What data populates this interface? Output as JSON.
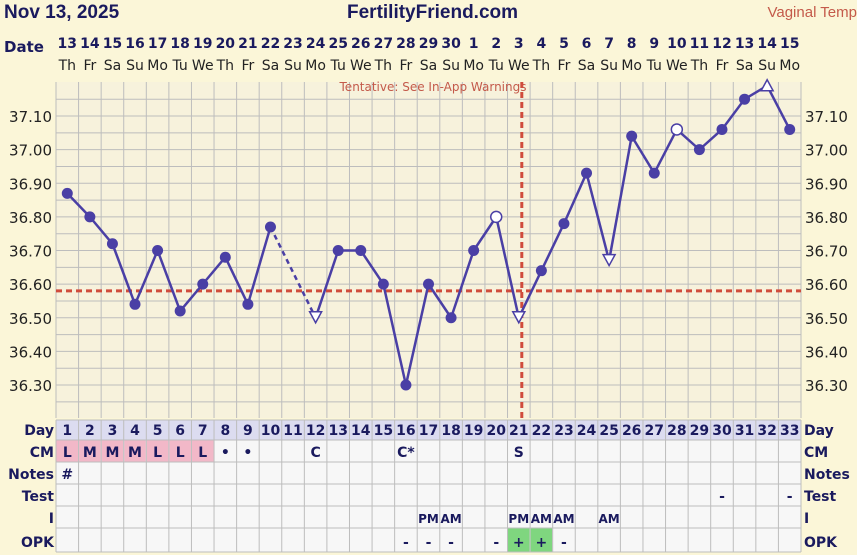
{
  "header": {
    "date": "Nov 13, 2025",
    "site": "FertilityFriend.com",
    "temp_method": "Vaginal Temp"
  },
  "row_labels": {
    "date": "Date",
    "day": "Day",
    "cm": "CM",
    "notes": "Notes",
    "test": "Test",
    "intercourse": "I",
    "opk": "OPK"
  },
  "warning": "Tentative: See In-App Warnings",
  "colors": {
    "line": "#4a3fa5",
    "coverline": "#d04c3c",
    "grid": "#bdbdbd",
    "cm_pink": "#f2b8c8",
    "opk_green": "#7fd67f"
  },
  "chart_data": {
    "type": "line",
    "title": "",
    "xlabel": "Day",
    "ylabel": "",
    "ylim": [
      36.2,
      37.2
    ],
    "yticks": [
      "36.30",
      "36.40",
      "36.50",
      "36.60",
      "36.70",
      "36.80",
      "36.90",
      "37.00",
      "37.10"
    ],
    "dates": [
      "13",
      "14",
      "15",
      "16",
      "17",
      "18",
      "19",
      "20",
      "21",
      "22",
      "23",
      "24",
      "25",
      "26",
      "27",
      "28",
      "29",
      "30",
      "1",
      "2",
      "3",
      "4",
      "5",
      "6",
      "7",
      "8",
      "9",
      "10",
      "11",
      "12",
      "13",
      "14",
      "15"
    ],
    "weekdays": [
      "Th",
      "Fr",
      "Sa",
      "Su",
      "Mo",
      "Tu",
      "We",
      "Th",
      "Fr",
      "Sa",
      "Su",
      "Mo",
      "Tu",
      "We",
      "Th",
      "Fr",
      "Sa",
      "Su",
      "Mo",
      "Tu",
      "We",
      "Th",
      "Fr",
      "Sa",
      "Su",
      "Mo",
      "Tu",
      "We",
      "Th",
      "Fr",
      "Sa",
      "Su",
      "Mo"
    ],
    "days": [
      1,
      2,
      3,
      4,
      5,
      6,
      7,
      8,
      9,
      10,
      11,
      12,
      13,
      14,
      15,
      16,
      17,
      18,
      19,
      20,
      21,
      22,
      23,
      24,
      25,
      26,
      27,
      28,
      29,
      30,
      31,
      32,
      33
    ],
    "temps": [
      36.87,
      36.8,
      36.72,
      36.54,
      36.7,
      36.52,
      36.6,
      36.68,
      36.54,
      36.77,
      null,
      36.5,
      36.7,
      36.7,
      36.6,
      36.3,
      36.6,
      36.5,
      36.7,
      36.8,
      36.5,
      36.64,
      36.78,
      36.93,
      36.67,
      37.04,
      36.93,
      37.06,
      37.0,
      37.06,
      37.15,
      37.19,
      37.06
    ],
    "markers": [
      "dot",
      "dot",
      "dot",
      "dot",
      "dot",
      "dot",
      "dot",
      "dot",
      "dot",
      "dot",
      "none",
      "triangle",
      "dot",
      "dot",
      "dot",
      "dot",
      "dot",
      "dot",
      "dot",
      "open",
      "triangle",
      "dot",
      "dot",
      "dot",
      "triangle",
      "dot",
      "dot",
      "open",
      "dot",
      "dot",
      "dot",
      "triangle-up",
      "dot"
    ],
    "coverline": 36.58,
    "ovulation_day": 21,
    "cm": [
      "L",
      "M",
      "M",
      "M",
      "L",
      "L",
      "L",
      "•",
      "•",
      "",
      "",
      "C",
      "",
      "",
      "",
      "C*",
      "",
      "",
      "",
      "",
      "S",
      "",
      "",
      "",
      "",
      "",
      "",
      "",
      "",
      "",
      "",
      "",
      ""
    ],
    "cm_shaded": [
      true,
      true,
      true,
      true,
      true,
      true,
      true,
      false,
      false,
      false,
      false,
      false,
      false,
      false,
      false,
      false,
      false,
      false,
      false,
      false,
      false,
      false,
      false,
      false,
      false,
      false,
      false,
      false,
      false,
      false,
      false,
      false,
      false
    ],
    "notes": [
      "#",
      "",
      "",
      "",
      "",
      "",
      "",
      "",
      "",
      "",
      "",
      "",
      "",
      "",
      "",
      "",
      "",
      "",
      "",
      "",
      "",
      "",
      "",
      "",
      "",
      "",
      "",
      "",
      "",
      "",
      "",
      "",
      ""
    ],
    "test": [
      "",
      "",
      "",
      "",
      "",
      "",
      "",
      "",
      "",
      "",
      "",
      "",
      "",
      "",
      "",
      "",
      "",
      "",
      "",
      "",
      "",
      "",
      "",
      "",
      "",
      "",
      "",
      "",
      "",
      "-",
      "",
      "",
      "-"
    ],
    "intercourse": [
      "",
      "",
      "",
      "",
      "",
      "",
      "",
      "",
      "",
      "",
      "",
      "",
      "",
      "",
      "",
      "",
      "PM",
      "AM",
      "",
      "",
      "PM",
      "AM",
      "AM",
      "",
      "AM",
      "",
      "",
      "",
      "",
      "",
      "",
      "",
      ""
    ],
    "opk": [
      "",
      "",
      "",
      "",
      "",
      "",
      "",
      "",
      "",
      "",
      "",
      "",
      "",
      "",
      "",
      "-",
      "-",
      "-",
      "",
      "-",
      "+",
      "+",
      "-",
      "",
      "",
      "",
      "",
      "",
      "",
      "",
      "",
      "",
      ""
    ],
    "opk_positive": [
      false,
      false,
      false,
      false,
      false,
      false,
      false,
      false,
      false,
      false,
      false,
      false,
      false,
      false,
      false,
      false,
      false,
      false,
      false,
      false,
      true,
      true,
      false,
      false,
      false,
      false,
      false,
      false,
      false,
      false,
      false,
      false,
      false
    ]
  }
}
